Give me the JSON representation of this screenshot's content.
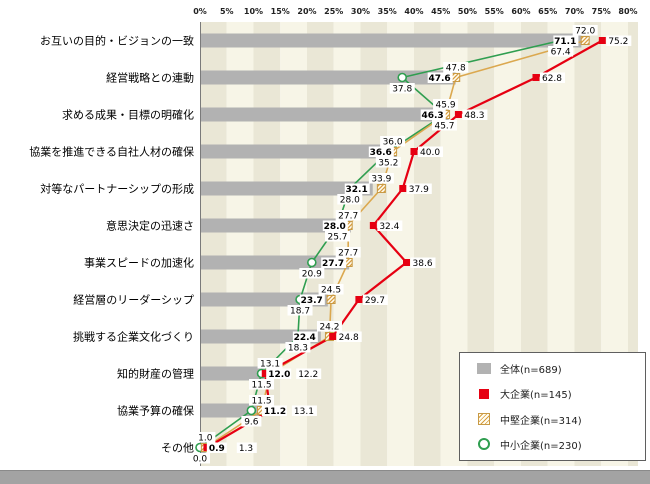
{
  "chart_data": {
    "type": "bar",
    "subtype": "horizontal-bars-with-line-overlays",
    "title": "",
    "x_axis": {
      "unit": "%",
      "min": 0,
      "max": 80,
      "tick_step": 5
    },
    "x_ticks": [
      "0%",
      "5%",
      "10%",
      "15%",
      "20%",
      "25%",
      "30%",
      "35%",
      "40%",
      "45%",
      "50%",
      "55%",
      "60%",
      "65%",
      "70%",
      "75%",
      "80%"
    ],
    "categories": [
      "お互いの目的・ビジョンの一致",
      "経営戦略との連動",
      "求める成果・目標の明確化",
      "協業を推進できる自社人材の確保",
      "対等なパートナーシップの形成",
      "意思決定の迅速さ",
      "事業スピードの加速化",
      "経営層のリーダーシップ",
      "挑戦する企業文化づくり",
      "知的財産の管理",
      "協業予算の確保",
      "その他"
    ],
    "series": [
      {
        "key": "overall",
        "name": "全体(n=689)",
        "type": "bar",
        "marker": "gray-bar",
        "color": "#b2b2b2",
        "values": [
          71.1,
          47.6,
          46.3,
          36.6,
          32.1,
          28.0,
          27.7,
          23.7,
          22.4,
          12.0,
          11.2,
          0.9
        ]
      },
      {
        "key": "large",
        "name": "大企業(n=145)",
        "type": "line",
        "marker": "filled-red-square",
        "color": "#e60012",
        "values": [
          75.2,
          62.8,
          48.3,
          40.0,
          37.9,
          32.4,
          38.6,
          29.7,
          24.8,
          12.2,
          13.1,
          1.3
        ]
      },
      {
        "key": "mid",
        "name": "中堅企業(n=314)",
        "type": "line",
        "marker": "hatched-orange-square",
        "color": "#dba84f",
        "values": [
          72.0,
          47.8,
          45.9,
          36.0,
          33.9,
          27.7,
          27.7,
          24.5,
          24.2,
          13.1,
          11.5,
          1.0
        ]
      },
      {
        "key": "small",
        "name": "中小企業(n=230)",
        "type": "line",
        "marker": "open-green-circle",
        "color": "#2f9e50",
        "values": [
          67.4,
          37.8,
          45.7,
          35.2,
          28.0,
          25.7,
          20.9,
          18.7,
          18.3,
          11.5,
          9.6,
          0.0
        ]
      }
    ],
    "legend": {
      "position": "bottom-right",
      "items": [
        "全体(n=689)",
        "大企業(n=145)",
        "中堅企業(n=314)",
        "中小企業(n=230)"
      ]
    },
    "grid": "vertical-striped-bands"
  },
  "colors": {
    "stripe_dark": "#eae7d6",
    "stripe_light": "#f7f5e7",
    "bar": "#b2b2b2",
    "red": "#e60012",
    "orange_line": "#dfa852",
    "orange_hatch": "#d89c3e",
    "orange_border": "#c89a45",
    "green": "#2f9e50",
    "axis": "#7a7a7a",
    "label_text": "#000000",
    "tick_text": "#222222",
    "bottom_strip": "#a3a3a3"
  }
}
